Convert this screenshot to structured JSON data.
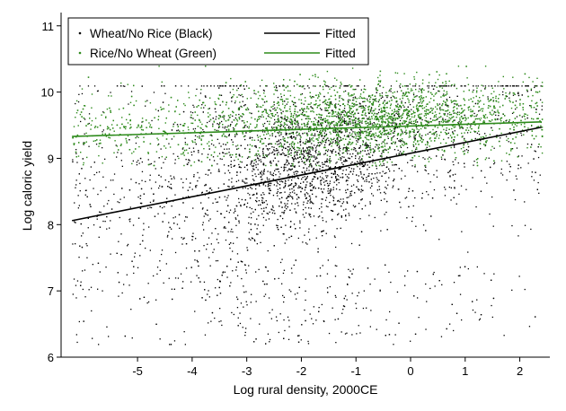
{
  "chart_data": {
    "type": "scatter",
    "title": "",
    "xlabel": "Log rural density, 2000CE",
    "ylabel": "Log caloric yield",
    "xlim": [
      -6.4,
      2.55
    ],
    "ylim": [
      6.0,
      11.2
    ],
    "xticks": [
      -5,
      -4,
      -3,
      -2,
      -1,
      0,
      1,
      2
    ],
    "yticks": [
      6,
      7,
      8,
      9,
      10,
      11
    ],
    "grid": false,
    "legend_position": "top-left",
    "series": [
      {
        "name": "Wheat/No Rice (Black)",
        "kind": "scatter",
        "color": "#000000",
        "approx_points": 9000,
        "x_range": [
          -6.2,
          2.4
        ],
        "y_range": [
          6.2,
          10.1
        ],
        "dense_region": {
          "x": [
            -3.5,
            0.0
          ],
          "y": [
            8.4,
            9.2
          ]
        }
      },
      {
        "name": "Rice/No Wheat (Green)",
        "kind": "scatter",
        "color": "#2e8b1c",
        "approx_points": 8000,
        "x_range": [
          -6.2,
          2.4
        ],
        "y_range": [
          8.9,
          10.4
        ],
        "dense_region": {
          "x": [
            -3.0,
            2.0
          ],
          "y": [
            9.2,
            9.8
          ]
        }
      },
      {
        "name": "Fitted",
        "kind": "line",
        "color": "#000000",
        "x": [
          -6.2,
          2.4
        ],
        "y": [
          8.06,
          9.47
        ]
      },
      {
        "name": "Fitted",
        "kind": "line",
        "color": "#2e8b1c",
        "x": [
          -6.2,
          2.4
        ],
        "y": [
          9.33,
          9.55
        ]
      }
    ]
  }
}
